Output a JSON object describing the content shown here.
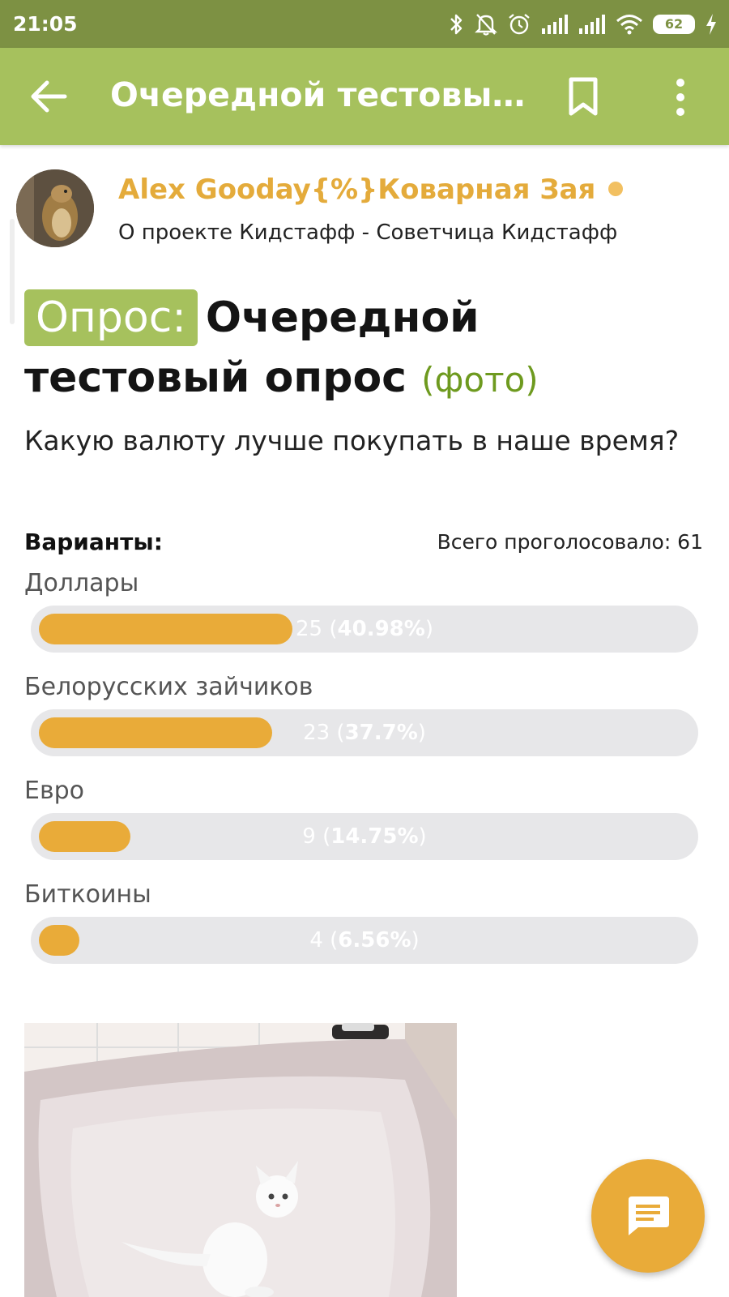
{
  "status_bar": {
    "time": "21:05",
    "battery": "62"
  },
  "app_bar": {
    "title": "Очередной тестовый…"
  },
  "author": {
    "name": "Alex Gooday{%}Коварная Зая",
    "subtitle": "О проекте Кидстафф - Советчица Кидстафф",
    "online_color": "#f2c061"
  },
  "poll": {
    "badge": "Опрос:",
    "title": "Очередной тестовый опрос",
    "photo_tag": "(фото)",
    "question": "Какую валюту лучше покупать в наше время?",
    "variants_label": "Варианты:",
    "total_votes": "Всего проголосовало: 61",
    "options": [
      {
        "label": "Доллары",
        "votes": "25",
        "percent": "40.98%",
        "fraction": 0.4098
      },
      {
        "label": "Белорусских зайчиков",
        "votes": "23",
        "percent": "37.7%",
        "fraction": 0.377
      },
      {
        "label": "Евро",
        "votes": "9",
        "percent": "14.75%",
        "fraction": 0.1475
      },
      {
        "label": "Биткоины",
        "votes": "4",
        "percent": "6.56%",
        "fraction": 0.0656
      }
    ]
  },
  "colors": {
    "status_bar": "#7d9143",
    "app_bar": "#a6c15d",
    "accent": "#e9ab39",
    "author_name": "#e4ab3b",
    "photo_tag": "#6e9a1f"
  },
  "icons": {
    "back": "arrow-left-icon",
    "bookmark": "bookmark-icon",
    "menu": "more-vert-icon",
    "fab": "comment-icon"
  }
}
